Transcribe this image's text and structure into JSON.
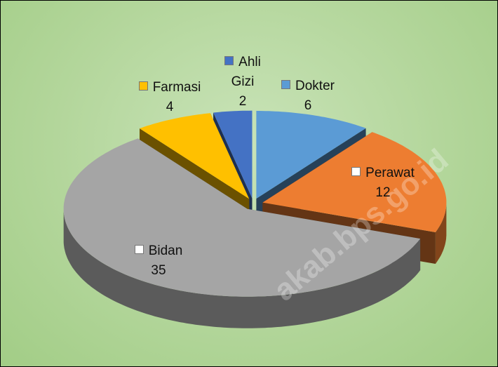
{
  "chart_data": {
    "type": "pie3d",
    "categories": [
      "Dokter",
      "Perawat",
      "Bidan",
      "Farmasi",
      "Ahli Gizi"
    ],
    "values": [
      6,
      12,
      35,
      4,
      2
    ],
    "colors": [
      "#5b9bd5",
      "#ed7d31",
      "#a5a5a5",
      "#ffc000",
      "#4472c4"
    ],
    "watermark": "akab.bps.go.id"
  }
}
